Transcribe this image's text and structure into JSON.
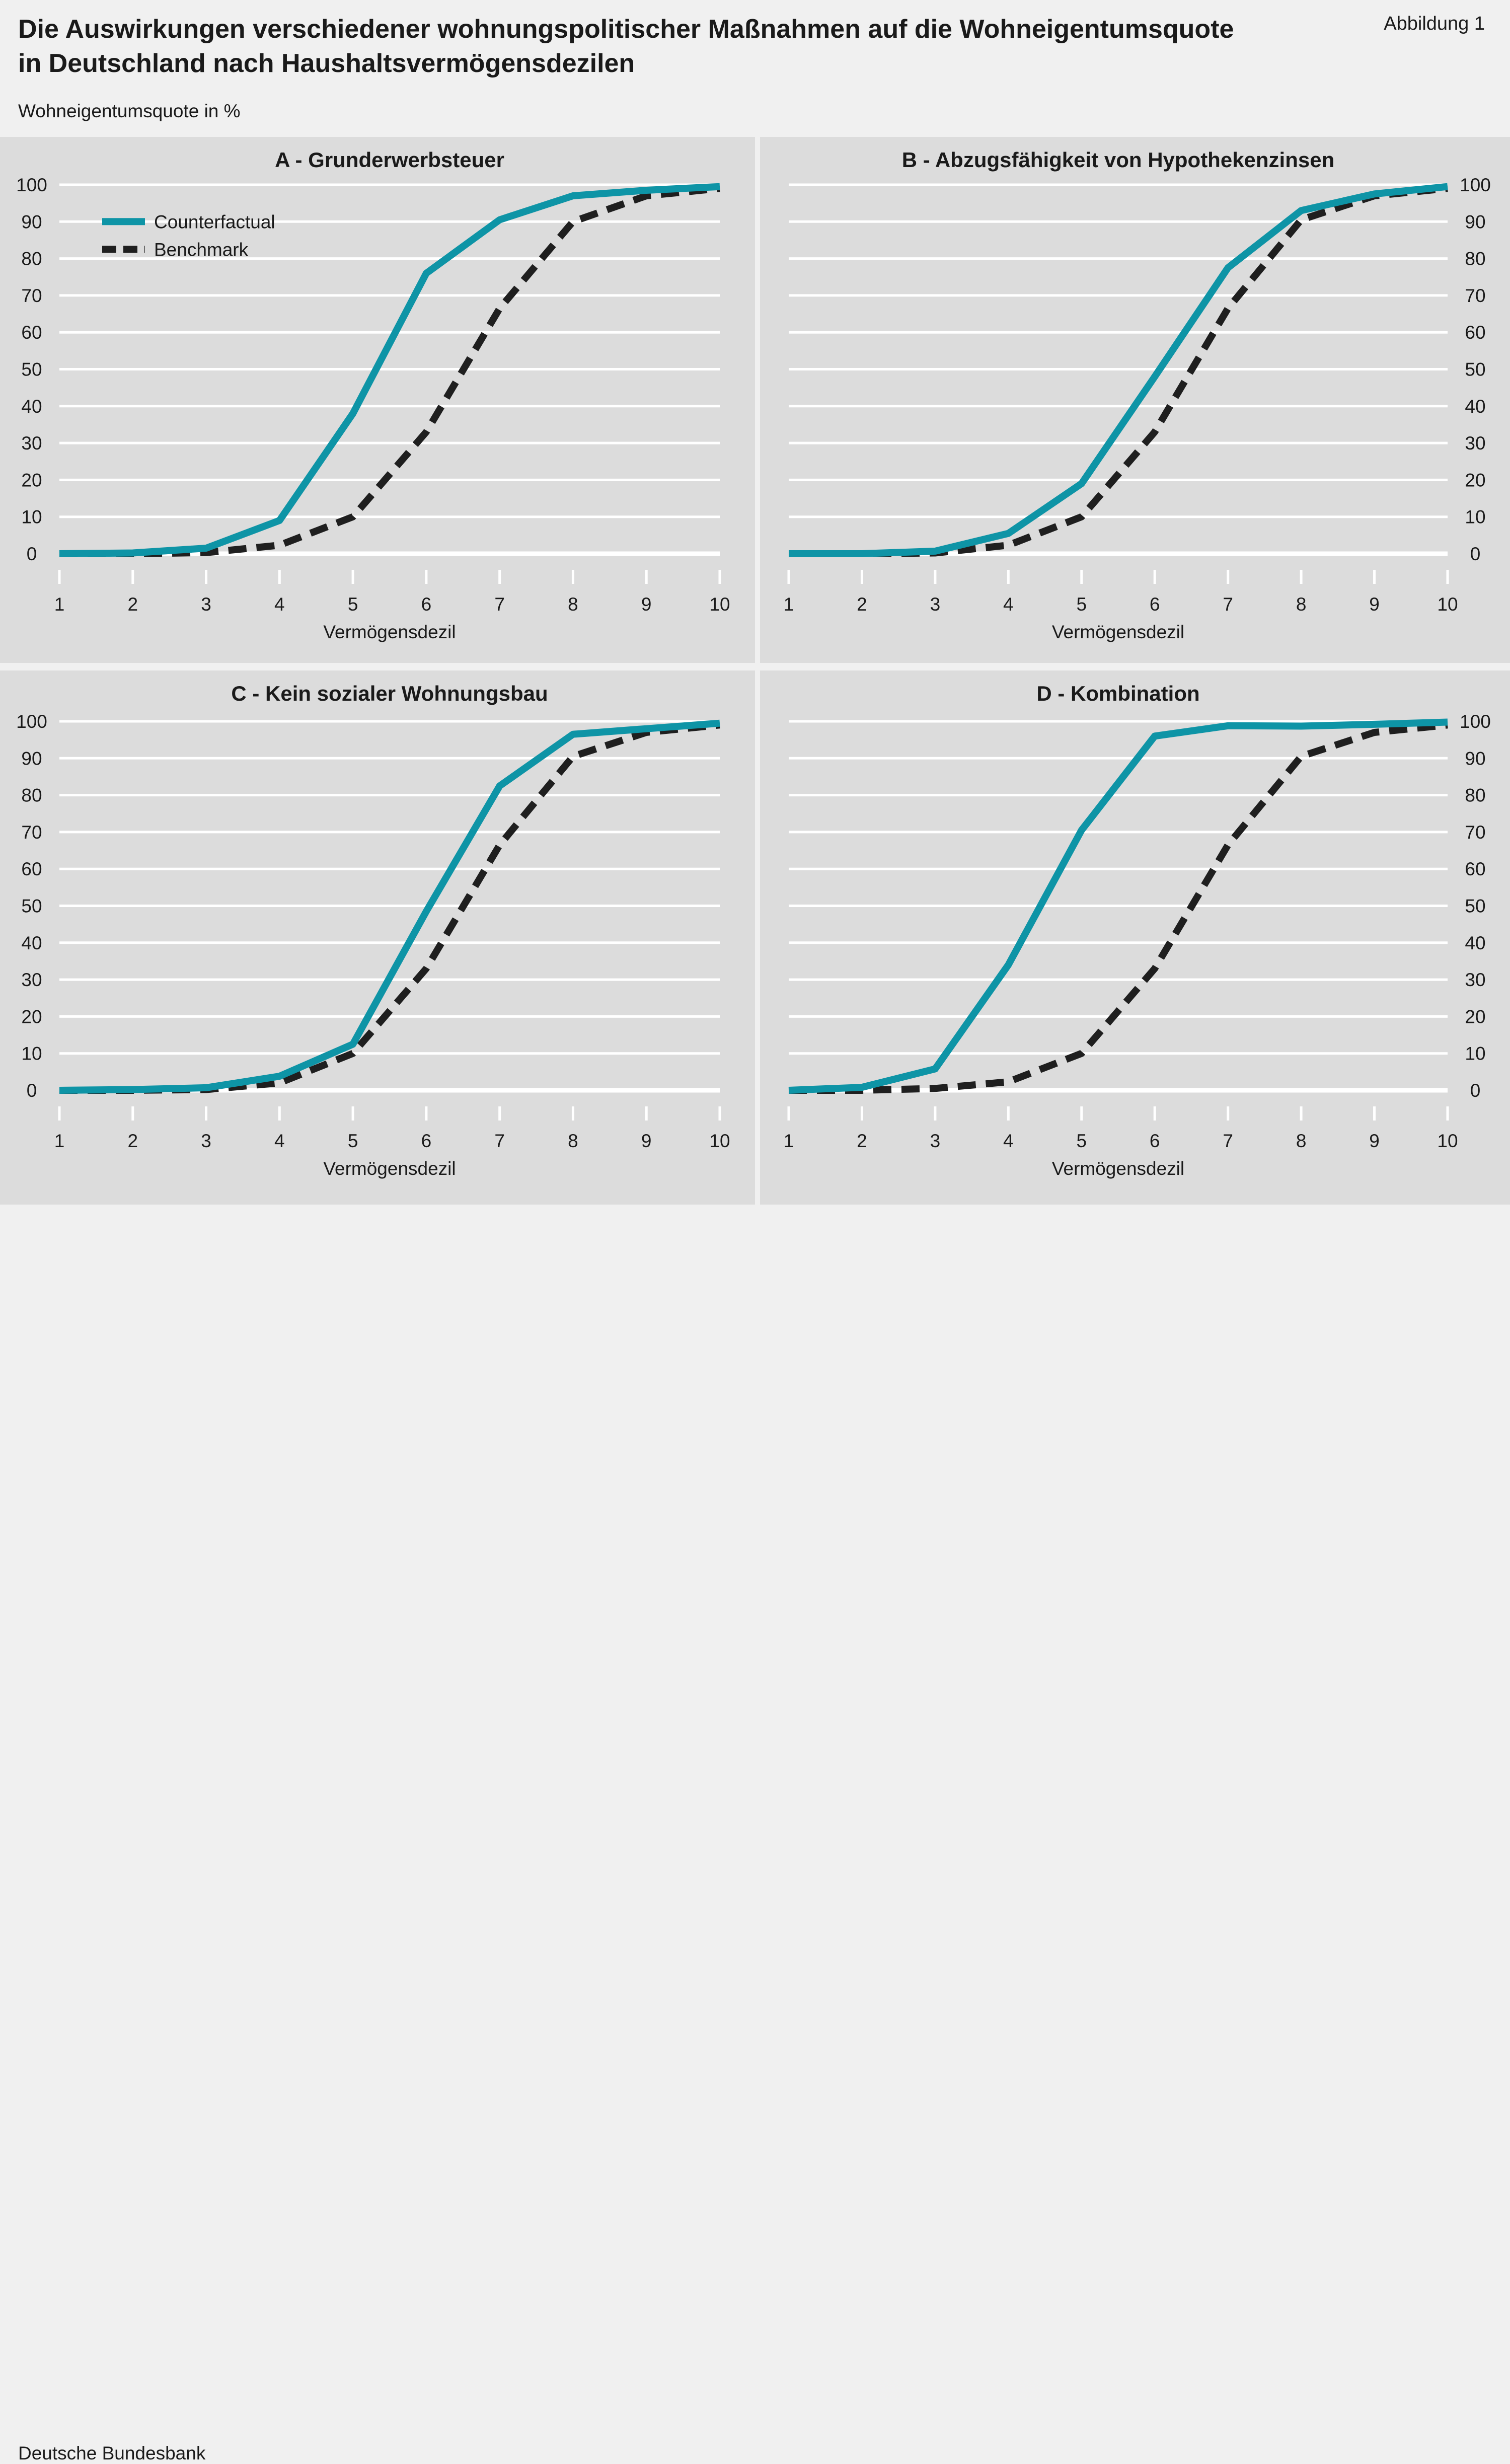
{
  "header": {
    "title_line1": "Die Auswirkungen verschiedener wohnungspolitischer Maßnahmen auf die Wohneigentumsquote",
    "title_line2": "in Deutschland nach Haushaltsvermögensdezilen",
    "figure_label": "Abbildung 1",
    "unit_label": "Wohneigentumsquote in %"
  },
  "footer": {
    "source": "Deutsche Bundesbank"
  },
  "colors": {
    "counterfactual": "#0e94a6",
    "benchmark": "#1f1f1f",
    "panel_bg": "#dcdcdc",
    "page_bg": "#f0f0f0",
    "grid": "#ffffff"
  },
  "legend": {
    "items": [
      "Counterfactual",
      "Benchmark"
    ],
    "placement": "top-left (panel A)"
  },
  "chart_data": [
    {
      "type": "line",
      "title": "A - Grunderwerbsteuer",
      "xlabel": "Vermögensdezil",
      "ylabel": "",
      "x": [
        1,
        2,
        3,
        4,
        5,
        6,
        7,
        8,
        9,
        10
      ],
      "ylim": [
        0,
        100
      ],
      "yticks": [
        0,
        10,
        20,
        30,
        40,
        50,
        60,
        70,
        80,
        90,
        100
      ],
      "y_axis_side": "left",
      "grid": true,
      "show_legend": true,
      "series": [
        {
          "name": "Counterfactual",
          "style": "solid",
          "values": [
            0,
            0.2,
            1.5,
            9,
            38,
            76,
            90.5,
            97,
            98.5,
            99.5
          ]
        },
        {
          "name": "Benchmark",
          "style": "dashed",
          "values": [
            0,
            0,
            0.3,
            2.3,
            10,
            33,
            66.5,
            90,
            97,
            99
          ]
        }
      ]
    },
    {
      "type": "line",
      "title": "B - Abzugsfähigkeit von Hypothekenzinsen",
      "xlabel": "Vermögensdezil",
      "ylabel": "",
      "x": [
        1,
        2,
        3,
        4,
        5,
        6,
        7,
        8,
        9,
        10
      ],
      "ylim": [
        0,
        100
      ],
      "yticks": [
        0,
        10,
        20,
        30,
        40,
        50,
        60,
        70,
        80,
        90,
        100
      ],
      "y_axis_side": "right",
      "grid": true,
      "show_legend": false,
      "series": [
        {
          "name": "Counterfactual",
          "style": "solid",
          "values": [
            0,
            0,
            0.7,
            5.5,
            19,
            48,
            77.5,
            93,
            97.5,
            99.5
          ]
        },
        {
          "name": "Benchmark",
          "style": "dashed",
          "values": [
            0,
            0,
            0.2,
            2.3,
            10,
            33,
            66.5,
            90.5,
            97,
            99
          ]
        }
      ]
    },
    {
      "type": "line",
      "title": "C - Kein sozialer Wohnungsbau",
      "xlabel": "Vermögensdezil",
      "ylabel": "",
      "x": [
        1,
        2,
        3,
        4,
        5,
        6,
        7,
        8,
        9,
        10
      ],
      "ylim": [
        0,
        100
      ],
      "yticks": [
        0,
        10,
        20,
        30,
        40,
        50,
        60,
        70,
        80,
        90,
        100
      ],
      "y_axis_side": "left",
      "grid": true,
      "show_legend": false,
      "series": [
        {
          "name": "Counterfactual",
          "style": "solid",
          "values": [
            0,
            0.2,
            0.7,
            3.8,
            12.5,
            48.5,
            82.5,
            96.5,
            98,
            99.5
          ]
        },
        {
          "name": "Benchmark",
          "style": "dashed",
          "values": [
            0,
            0,
            0.2,
            2,
            10,
            33,
            66.5,
            90.5,
            97,
            99
          ]
        }
      ]
    },
    {
      "type": "line",
      "title": "D - Kombination",
      "xlabel": "Vermögensdezil",
      "ylabel": "",
      "x": [
        1,
        2,
        3,
        4,
        5,
        6,
        7,
        8,
        9,
        10
      ],
      "ylim": [
        0,
        100
      ],
      "yticks": [
        0,
        10,
        20,
        30,
        40,
        50,
        60,
        70,
        80,
        90,
        100
      ],
      "y_axis_side": "right",
      "grid": true,
      "show_legend": false,
      "series": [
        {
          "name": "Counterfactual",
          "style": "solid",
          "values": [
            0,
            0.8,
            5.8,
            34,
            70.5,
            96,
            98.8,
            98.7,
            99.2,
            99.8
          ]
        },
        {
          "name": "Benchmark",
          "style": "dashed",
          "values": [
            0,
            0,
            0.5,
            2.3,
            10,
            33,
            66.5,
            90.5,
            97,
            99
          ]
        }
      ]
    }
  ]
}
